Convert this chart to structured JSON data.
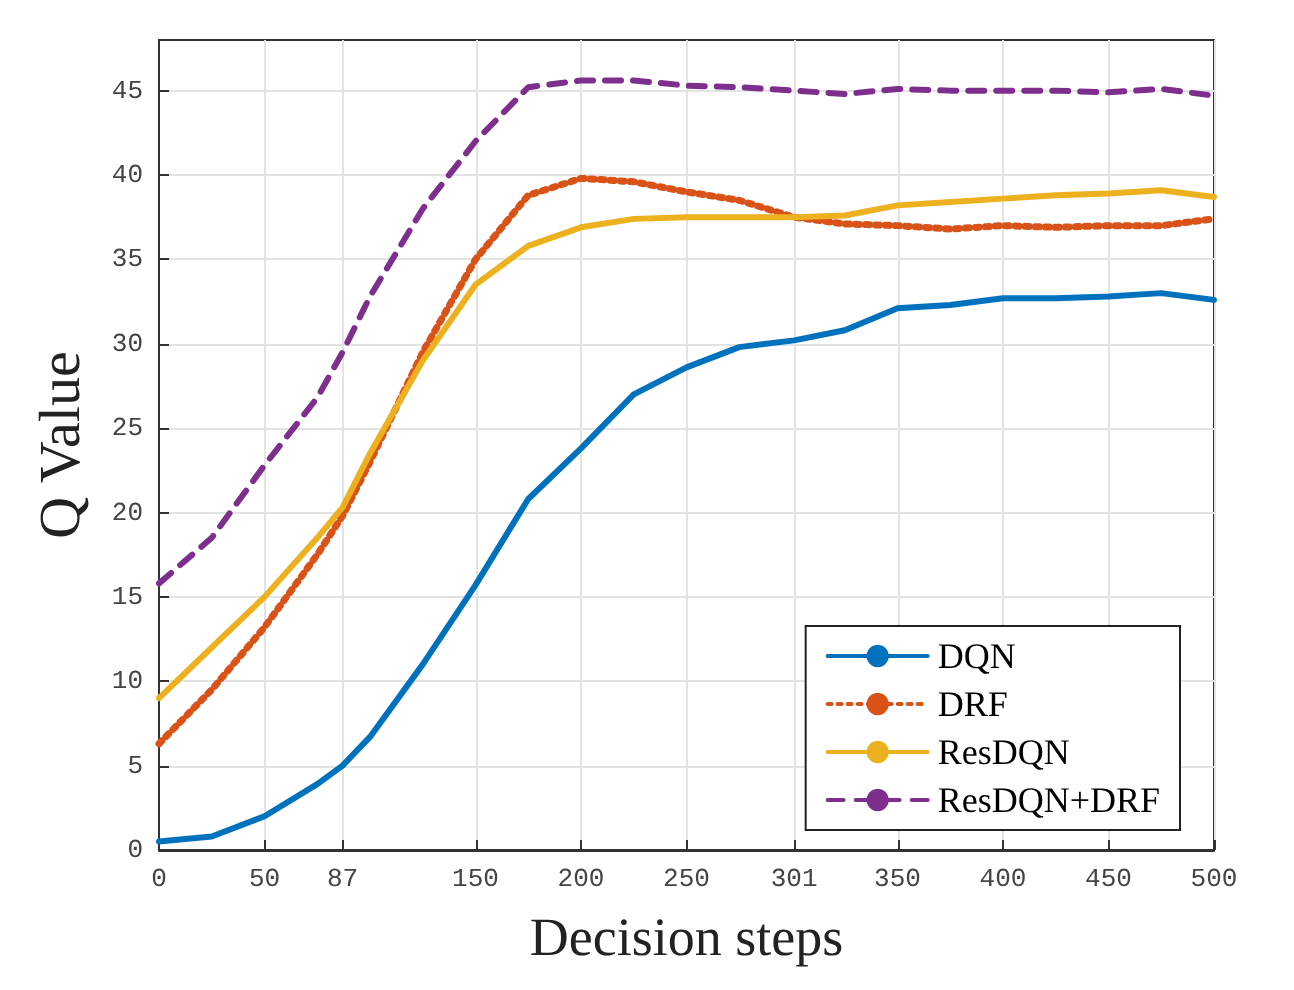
{
  "chart_data": {
    "type": "line",
    "xlabel": "Decision steps",
    "ylabel": "Q Value",
    "x": [
      0,
      25,
      50,
      75,
      87,
      100,
      125,
      150,
      175,
      200,
      225,
      250,
      275,
      301,
      325,
      350,
      375,
      400,
      425,
      450,
      475,
      500
    ],
    "series": [
      {
        "name": "DQN",
        "color": "#0072bd",
        "line_style": "solid",
        "values": [
          0.5,
          0.8,
          2.0,
          3.9,
          5.0,
          6.7,
          11,
          15.7,
          20.8,
          23.8,
          27,
          28.6,
          29.8,
          30.2,
          30.8,
          32.1,
          32.3,
          32.7,
          32.7,
          32.8,
          33.0,
          32.6
        ]
      },
      {
        "name": "DRF",
        "color": "#d95319",
        "line_style": "dotted",
        "values": [
          6.3,
          9.5,
          13.2,
          17.5,
          19.8,
          23,
          29.5,
          35,
          38.8,
          39.8,
          39.6,
          39,
          38.5,
          37.5,
          37.1,
          37,
          36.8,
          37,
          36.9,
          37,
          37,
          37.4
        ]
      },
      {
        "name": "ResDQN",
        "color": "#edb120",
        "line_style": "solid",
        "values": [
          9,
          12,
          15,
          18.5,
          20.3,
          23.5,
          29,
          33.5,
          35.8,
          36.9,
          37.4,
          37.5,
          37.5,
          37.5,
          37.6,
          38.2,
          38.4,
          38.6,
          38.8,
          38.9,
          39.1,
          38.7
        ]
      },
      {
        "name": "ResDQN+DRF",
        "color": "#7e2f8e",
        "line_style": "dashed",
        "values": [
          15.8,
          18.5,
          22.8,
          26.8,
          29.5,
          32.8,
          38,
          42,
          45.2,
          45.6,
          45.6,
          45.3,
          45.2,
          45.0,
          44.8,
          45.1,
          45.0,
          45.0,
          45.0,
          44.9,
          45.1,
          44.7
        ]
      }
    ],
    "xlim": [
      0,
      500
    ],
    "xticks": [
      0,
      50,
      87,
      150,
      200,
      250,
      301,
      350,
      400,
      450,
      500
    ],
    "ylim": [
      0,
      48
    ],
    "yticks": [
      0,
      5,
      10,
      15,
      20,
      25,
      30,
      35,
      40,
      45
    ],
    "grid": true,
    "legend": "bottom right",
    "marker": "none"
  }
}
